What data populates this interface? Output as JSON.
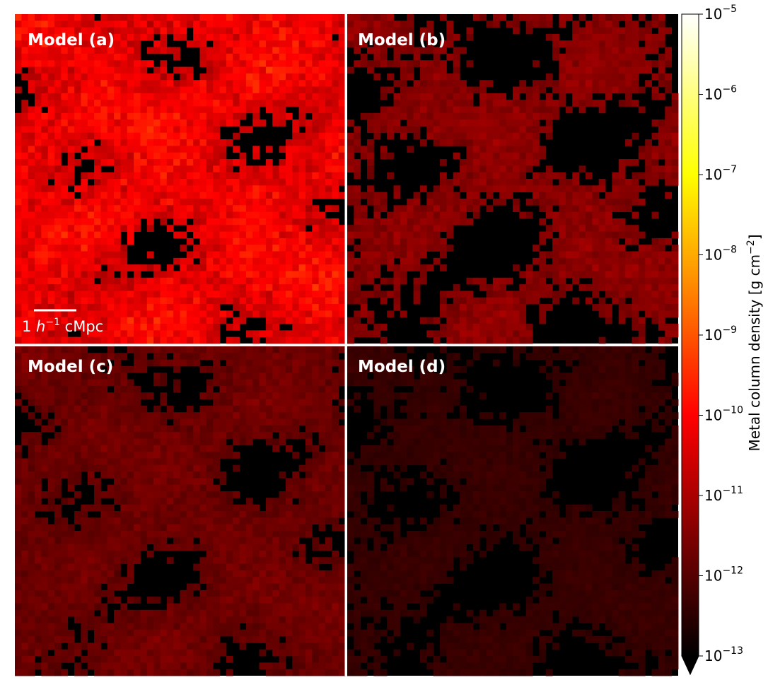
{
  "chart_data": {
    "type": "heatmap",
    "title": "",
    "xlabel": "",
    "ylabel": "",
    "grid": false,
    "colormap": "hot",
    "color_scale": "log",
    "panels": [
      {
        "label": "Model (a)",
        "name": "model-a",
        "intensity": 1.0,
        "black_fraction": 0.16
      },
      {
        "label": "Model (b)",
        "name": "model-b",
        "intensity": 0.55,
        "black_fraction": 0.42
      },
      {
        "label": "Model (c)",
        "name": "model-c",
        "intensity": 0.45,
        "black_fraction": 0.24
      },
      {
        "label": "Model (d)",
        "name": "model-d",
        "intensity": 0.22,
        "black_fraction": 0.4
      }
    ],
    "grid_cells": 50,
    "scalebar": {
      "label_pre": "1 ",
      "label_h": "h",
      "label_sup": "−1",
      "label_post": " cMpc"
    },
    "colorbar": {
      "label": "Metal column density [g cm⁻²]",
      "label_pre": "Metal column density [g cm",
      "label_sup": "−2",
      "label_post": "]",
      "log_min": -13,
      "log_max": -5,
      "extend": "min",
      "ticks": [
        {
          "base": "10",
          "exp": "−5",
          "value": -5
        },
        {
          "base": "10",
          "exp": "−6",
          "value": -6
        },
        {
          "base": "10",
          "exp": "−7",
          "value": -7
        },
        {
          "base": "10",
          "exp": "−8",
          "value": -8
        },
        {
          "base": "10",
          "exp": "−9",
          "value": -9
        },
        {
          "base": "10",
          "exp": "−10",
          "value": -10
        },
        {
          "base": "10",
          "exp": "−11",
          "value": -11
        },
        {
          "base": "10",
          "exp": "−12",
          "value": -12
        },
        {
          "base": "10",
          "exp": "−13",
          "value": -13
        }
      ]
    }
  }
}
